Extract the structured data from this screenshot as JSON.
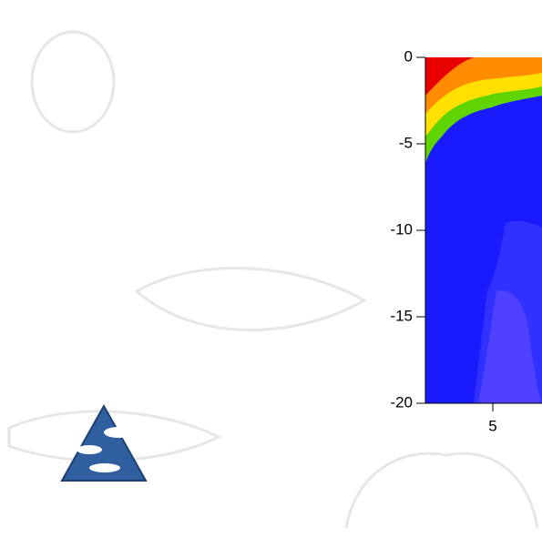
{
  "chart_data": {
    "type": "contour",
    "xlim": [
      1,
      8
    ],
    "xticks": [
      5
    ],
    "ylim": [
      -20,
      0
    ],
    "yticks": [
      0,
      -5,
      -10,
      -15,
      -20
    ]
  }
}
